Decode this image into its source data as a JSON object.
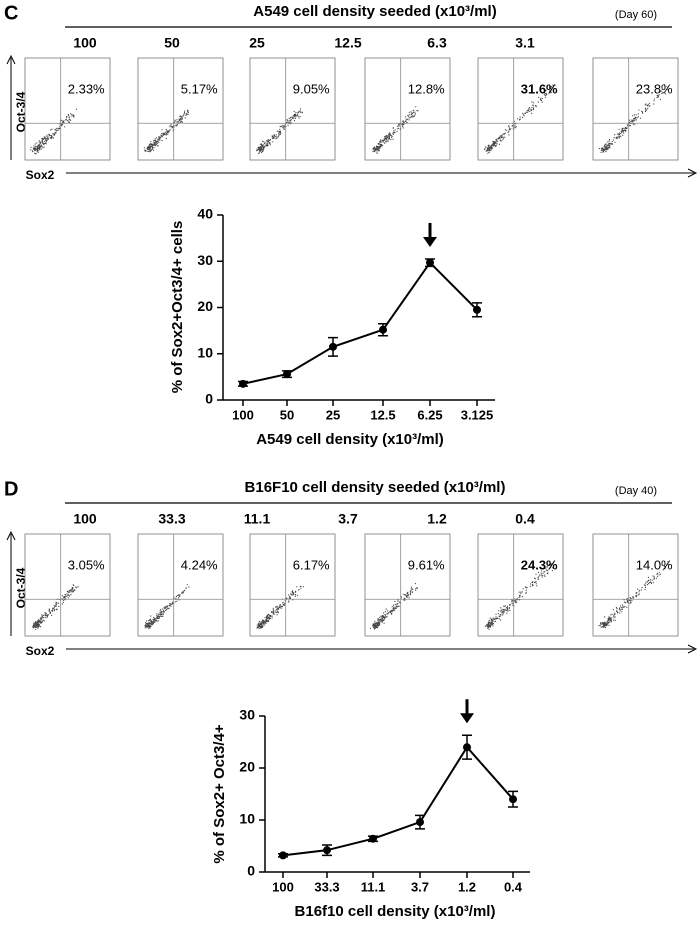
{
  "flow_panels": [
    {
      "label": "C",
      "title": "A549 cell density seeded (x10³/ml)",
      "day": "(Day 60)",
      "densities": [
        "100",
        "50",
        "25",
        "12.5",
        "6.3",
        "3.1"
      ],
      "percentages": [
        "2.33%",
        "5.17%",
        "9.05%",
        "12.8%",
        "31.6%",
        "23.8%"
      ],
      "highlight_index": 4,
      "y_axis_label": "Oct-3/4",
      "x_axis_label": "Sox2"
    },
    {
      "label": "D",
      "title": "B16F10 cell density seeded (x10³/ml)",
      "day": "(Day 40)",
      "densities": [
        "100",
        "33.3",
        "11.1",
        "3.7",
        "1.2",
        "0.4"
      ],
      "percentages": [
        "3.05%",
        "4.24%",
        "6.17%",
        "9.61%",
        "24.3%",
        "14.0%"
      ],
      "highlight_index": 4,
      "y_axis_label": "Oct-3/4",
      "x_axis_label": "Sox2"
    }
  ],
  "chart_data": [
    {
      "type": "line",
      "ylabel": "% of Sox2+Oct3/4+ cells",
      "xlabel": "A549 cell density (x10³/ml)",
      "categories": [
        "100",
        "50",
        "25",
        "12.5",
        "6.25",
        "3.125"
      ],
      "values": [
        3.5,
        5.6,
        11.5,
        15.2,
        29.7,
        19.5
      ],
      "errors": [
        0.5,
        0.7,
        2,
        1.3,
        0.8,
        1.5
      ],
      "color": "#000000",
      "ylim": [
        0,
        40
      ],
      "yticks": [
        0,
        10,
        20,
        30,
        40
      ],
      "arrow_index": 4
    },
    {
      "type": "line",
      "ylabel": "% of Sox2+ Oct3/4+",
      "xlabel": "B16f10 cell density (x10³/ml)",
      "categories": [
        "100",
        "33.3",
        "11.1",
        "3.7",
        "1.2",
        "0.4"
      ],
      "values": [
        3.2,
        4.2,
        6.4,
        9.6,
        24,
        14
      ],
      "errors": [
        0.3,
        1,
        0.5,
        1.3,
        2.3,
        1.5
      ],
      "color": "#000000",
      "ylim": [
        0,
        30
      ],
      "yticks": [
        0,
        10,
        20,
        30
      ],
      "arrow_index": 4
    }
  ]
}
